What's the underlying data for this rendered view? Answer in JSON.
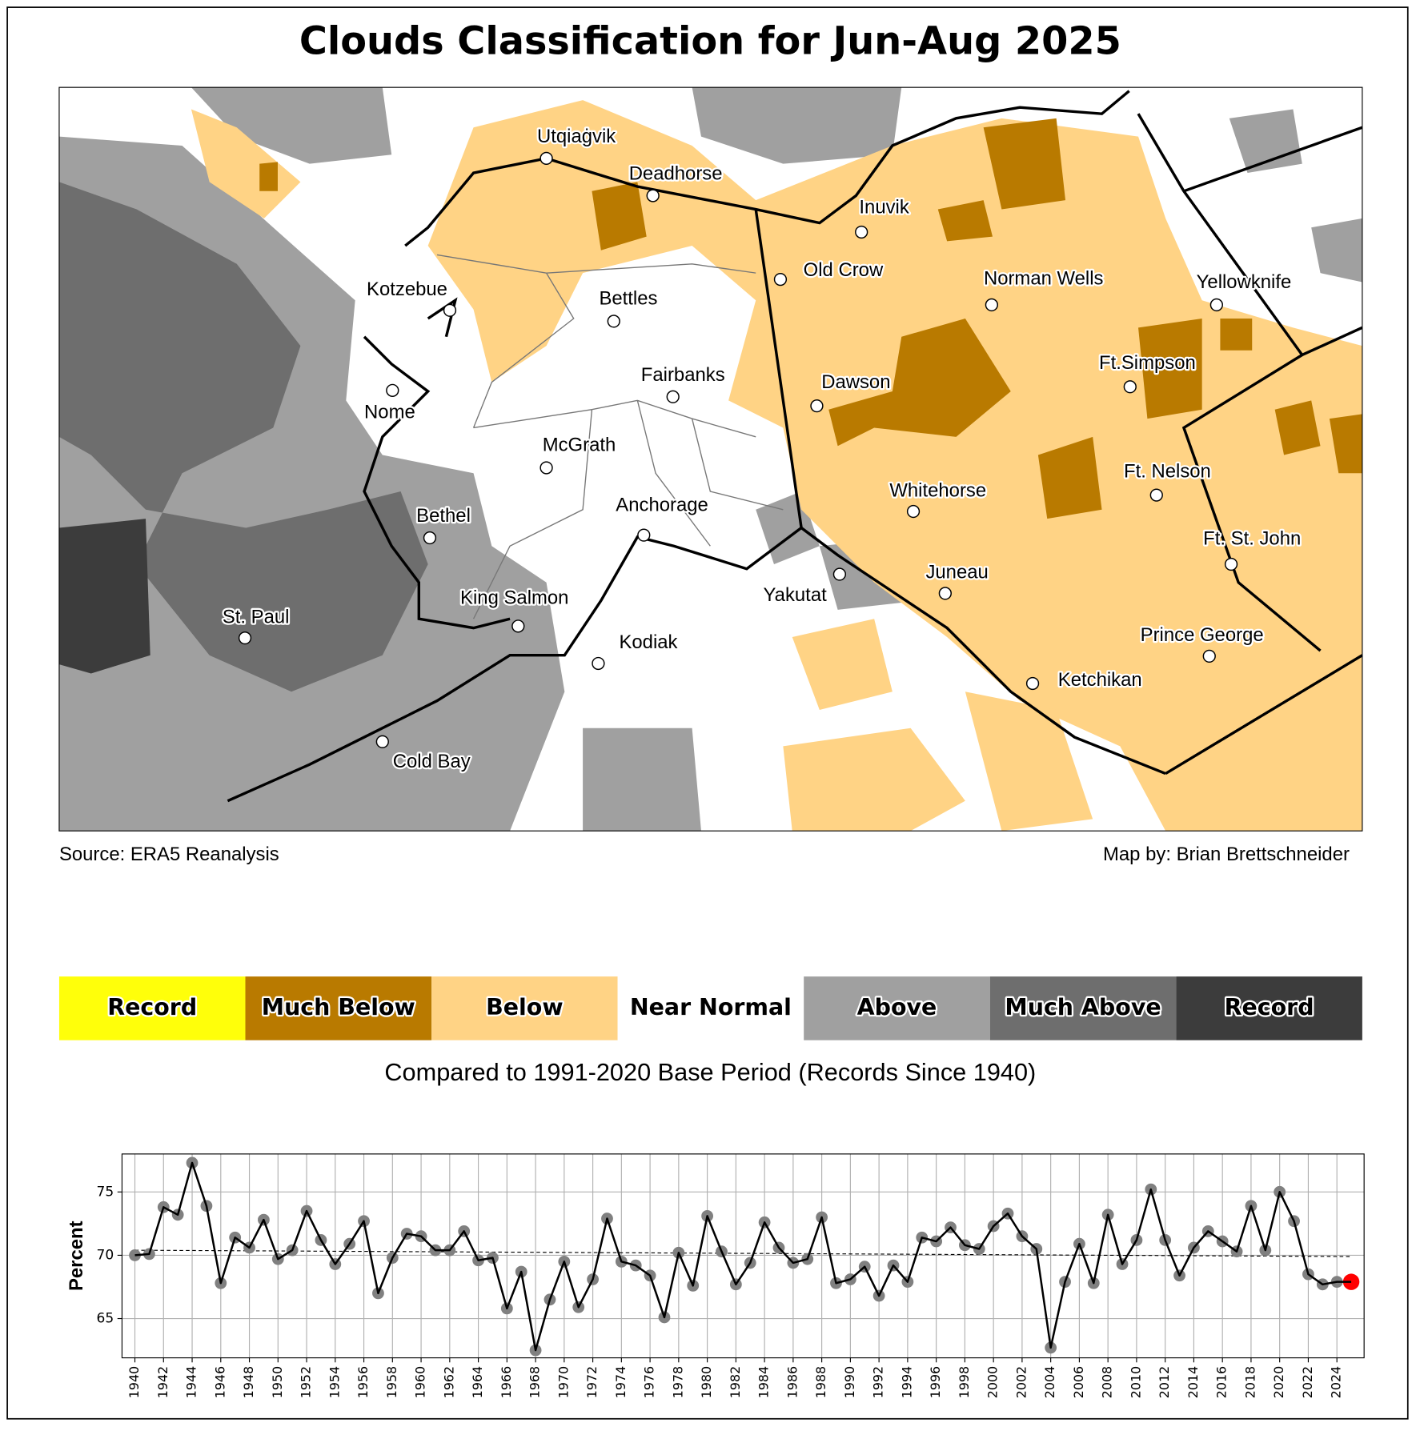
{
  "title": "Clouds Classification for Jun-Aug 2025",
  "source": "Source: ERA5 Reanalysis",
  "credit": "Map by: Brian Brettschneider",
  "cities": [
    "Utqiaġvik",
    "Deadhorse",
    "Inuvik",
    "Old Crow",
    "Norman Wells",
    "Yellowknife",
    "Kotzebue",
    "Bettles",
    "Fairbanks",
    "Nome",
    "Dawson",
    "Ft.Simpson",
    "McGrath",
    "Ft. Nelson",
    "Whitehorse",
    "Anchorage",
    "Bethel",
    "Ft. St. John",
    "Yakutat",
    "Juneau",
    "King Salmon",
    "St. Paul",
    "Prince George",
    "Kodiak",
    "Ketchikan",
    "Cold Bay"
  ],
  "legend": {
    "items": [
      {
        "label": "Record",
        "color": "#ffff0a"
      },
      {
        "label": "Much Below",
        "color": "#b97a00"
      },
      {
        "label": "Below",
        "color": "#ffd385"
      },
      {
        "label": "Near Normal",
        "color": "#ffffff"
      },
      {
        "label": "Above",
        "color": "#a0a0a0"
      },
      {
        "label": "Much Above",
        "color": "#6e6e6e"
      },
      {
        "label": "Record",
        "color": "#3c3c3c"
      }
    ],
    "note": "Compared to 1991-2020 Base Period   (Records Since 1940)"
  },
  "chart_data": {
    "type": "line",
    "y_label": "Percent",
    "x": [
      1940,
      1941,
      1942,
      1943,
      1944,
      1945,
      1946,
      1947,
      1948,
      1949,
      1950,
      1951,
      1952,
      1953,
      1954,
      1955,
      1956,
      1957,
      1958,
      1959,
      1960,
      1961,
      1962,
      1963,
      1964,
      1965,
      1966,
      1967,
      1968,
      1969,
      1970,
      1971,
      1972,
      1973,
      1974,
      1975,
      1976,
      1977,
      1978,
      1979,
      1980,
      1981,
      1982,
      1983,
      1984,
      1985,
      1986,
      1987,
      1988,
      1989,
      1990,
      1991,
      1992,
      1993,
      1994,
      1995,
      1996,
      1997,
      1998,
      1999,
      2000,
      2001,
      2002,
      2003,
      2004,
      2005,
      2006,
      2007,
      2008,
      2009,
      2010,
      2011,
      2012,
      2013,
      2014,
      2015,
      2016,
      2017,
      2018,
      2019,
      2020,
      2021,
      2022,
      2023,
      2024,
      2025
    ],
    "values": [
      70.0,
      70.1,
      73.8,
      73.2,
      77.3,
      73.9,
      67.8,
      71.4,
      70.6,
      72.8,
      69.7,
      70.4,
      73.5,
      71.2,
      69.3,
      70.9,
      72.7,
      67.0,
      69.8,
      71.7,
      71.5,
      70.4,
      70.4,
      71.9,
      69.6,
      69.8,
      65.8,
      68.7,
      62.5,
      66.5,
      69.5,
      65.9,
      68.1,
      72.9,
      69.5,
      69.2,
      68.4,
      65.1,
      70.2,
      67.6,
      73.1,
      70.3,
      67.7,
      69.4,
      72.6,
      70.6,
      69.4,
      69.7,
      73.0,
      67.8,
      68.1,
      69.1,
      66.8,
      69.2,
      67.9,
      71.4,
      71.1,
      72.2,
      70.8,
      70.5,
      72.3,
      73.3,
      71.5,
      70.5,
      62.7,
      67.9,
      70.9,
      67.8,
      73.2,
      69.3,
      71.2,
      75.2,
      71.2,
      68.4,
      70.6,
      71.9,
      71.1,
      70.3,
      73.9,
      70.4,
      75.0,
      72.7,
      68.5,
      67.7,
      67.9,
      67.9
    ],
    "color": "#000000",
    "marker_color": "#808080",
    "highlight_color": "#ff0000",
    "trend": {
      "x": [
        1940,
        2025
      ],
      "values": [
        70.4,
        69.9
      ]
    },
    "xlim": [
      1939.1,
      2025.9
    ],
    "ylim": [
      61.9,
      78.0
    ],
    "xticks": [
      1940,
      1942,
      1944,
      1946,
      1948,
      1950,
      1952,
      1954,
      1956,
      1958,
      1960,
      1962,
      1964,
      1966,
      1968,
      1970,
      1972,
      1974,
      1976,
      1978,
      1980,
      1982,
      1984,
      1986,
      1988,
      1990,
      1992,
      1994,
      1996,
      1998,
      2000,
      2002,
      2004,
      2006,
      2008,
      2010,
      2012,
      2014,
      2016,
      2018,
      2020,
      2022,
      2024
    ],
    "yticks": [
      65,
      70,
      75
    ],
    "grid": true
  }
}
